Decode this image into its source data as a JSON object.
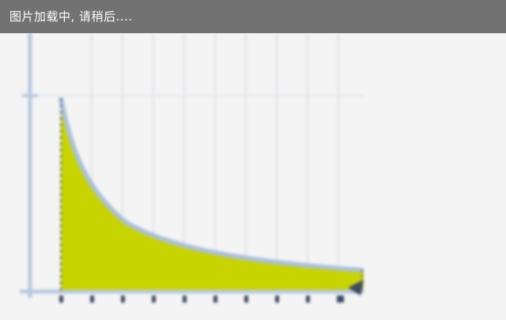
{
  "loading_banner": {
    "text": "图片加载中, 请稍后...."
  },
  "placeholder_image": {
    "icon": "area-under-curve-image",
    "colors": {
      "background": "#f4f4f4",
      "banner": "#727272",
      "axis": "#b6c8de",
      "grid": "#e6e6ea",
      "curve": "#aac0da",
      "fill": "#c8d400",
      "tick": "#3c4a66"
    }
  }
}
